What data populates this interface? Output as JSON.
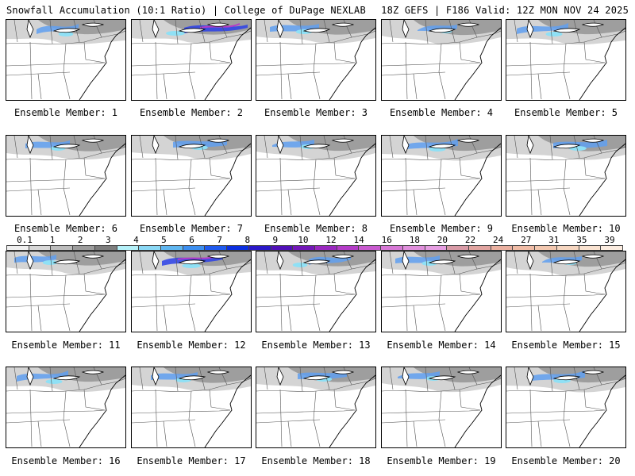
{
  "header": {
    "left": "Snowfall Accumulation (10:1 Ratio) | College of DuPage NEXLAB",
    "right": "18Z GEFS | F186 Valid: 12Z MON NOV 24 2025"
  },
  "colorbar": {
    "labels": [
      "0.1",
      "1",
      "2",
      "3",
      "4",
      "5",
      "6",
      "7",
      "8",
      "9",
      "10",
      "12",
      "14",
      "16",
      "18",
      "20",
      "22",
      "24",
      "27",
      "31",
      "35",
      "39"
    ],
    "colors": [
      "#f0f0f0",
      "#d8d8d8",
      "#bcbcbc",
      "#9c9c9c",
      "#7d7d7d",
      "#b4f0f8",
      "#8ad8f5",
      "#5fb6f0",
      "#3c8ff0",
      "#1f5bef",
      "#0b2fe0",
      "#2a18c8",
      "#5010b8",
      "#7318b8",
      "#9a28c0",
      "#b43cc8",
      "#c85acf",
      "#d778d6",
      "#e08fdc",
      "#e69ee2",
      "#d89aa6",
      "#e1a4a0",
      "#eab0a0",
      "#f0bca6",
      "#f3c8b0",
      "#f6d6c0",
      "#f9e2d0",
      "#fbece0"
    ]
  },
  "members": [
    {
      "caption": "Ensemble Member: 1",
      "intensity": 0.55
    },
    {
      "caption": "Ensemble Member: 2",
      "intensity": 1.0
    },
    {
      "caption": "Ensemble Member: 3",
      "intensity": 0.7
    },
    {
      "caption": "Ensemble Member: 4",
      "intensity": 0.5
    },
    {
      "caption": "Ensemble Member: 5",
      "intensity": 0.75
    },
    {
      "caption": "Ensemble Member: 6",
      "intensity": 0.6
    },
    {
      "caption": "Ensemble Member: 7",
      "intensity": 0.8
    },
    {
      "caption": "Ensemble Member: 8",
      "intensity": 0.55
    },
    {
      "caption": "Ensemble Member: 9",
      "intensity": 0.75
    },
    {
      "caption": "Ensemble Member: 10",
      "intensity": 0.8
    },
    {
      "caption": "Ensemble Member: 11",
      "intensity": 0.55
    },
    {
      "caption": "Ensemble Member: 12",
      "intensity": 0.95
    },
    {
      "caption": "Ensemble Member: 13",
      "intensity": 0.55
    },
    {
      "caption": "Ensemble Member: 14",
      "intensity": 0.6
    },
    {
      "caption": "Ensemble Member: 15",
      "intensity": 0.5
    },
    {
      "caption": "Ensemble Member: 16",
      "intensity": 0.75
    },
    {
      "caption": "Ensemble Member: 17",
      "intensity": 0.65
    },
    {
      "caption": "Ensemble Member: 18",
      "intensity": 0.7
    },
    {
      "caption": "Ensemble Member: 19",
      "intensity": 0.55
    },
    {
      "caption": "Ensemble Member: 20",
      "intensity": 0.8
    }
  ]
}
